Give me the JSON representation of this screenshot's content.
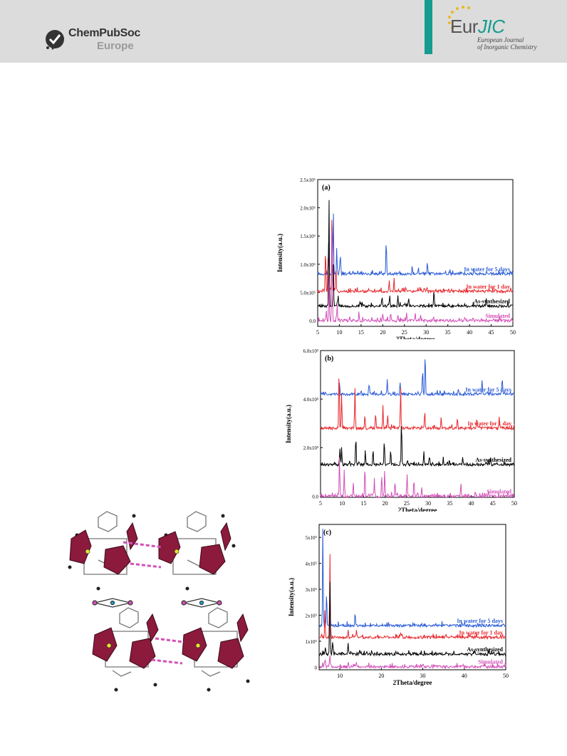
{
  "header": {
    "publisher_name": "ChemPubSoc",
    "publisher_sub": "Europe",
    "journal_brand_prefix": "Eur",
    "journal_brand_suffix": "JIC",
    "journal_full_line1": "European Journal",
    "journal_full_line2": "of Inorganic Chemistry"
  },
  "colors": {
    "header_bg": "#dcdcdc",
    "teal_accent": "#159c8f",
    "series_blue": "#2a5bd7",
    "series_red": "#e8262b",
    "series_black": "#000000",
    "series_magenta": "#d34fb8",
    "polyhedron": "#8b1a3c"
  },
  "chart_data": [
    {
      "type": "line",
      "panel_label": "(a)",
      "xlabel": "2Theta/degree",
      "ylabel": "Intensity(a.u.)",
      "xlim": [
        5,
        50
      ],
      "ylim": [
        -0.1,
        2.5
      ],
      "x_ticks": [
        5,
        10,
        15,
        20,
        25,
        30,
        35,
        40,
        45,
        50
      ],
      "x_tick_labels": [
        "5",
        "10",
        "15",
        "20",
        "25",
        "30",
        "35",
        "40",
        "45",
        "50"
      ],
      "y_ticks": [
        0,
        0.5,
        1.0,
        1.5,
        2.0,
        2.5
      ],
      "y_tick_labels": [
        "0.0",
        "5.0x10⁵",
        "1.0x10⁶",
        "1.5x10⁶",
        "2.0x10⁶",
        "2.5x10⁶"
      ],
      "series": [
        {
          "name": "In water for 5 days",
          "color": "#2a5bd7",
          "baseline": 0.83,
          "peaks": [
            [
              7.5,
              0.55
            ],
            [
              8.6,
              1.1
            ],
            [
              9.4,
              0.42
            ],
            [
              10.2,
              0.35
            ],
            [
              20.8,
              0.6
            ],
            [
              26.8,
              0.15
            ],
            [
              28.2,
              0.12
            ],
            [
              30.3,
              0.18
            ],
            [
              35.5,
              0.1
            ],
            [
              41.0,
              0.12
            ]
          ]
        },
        {
          "name": "In water for 1 day",
          "color": "#e8262b",
          "baseline": 0.52,
          "peaks": [
            [
              6.8,
              0.8
            ],
            [
              7.4,
              0.6
            ],
            [
              8.3,
              1.55
            ],
            [
              9.2,
              0.45
            ],
            [
              21.5,
              0.2
            ],
            [
              22.6,
              0.25
            ],
            [
              25.3,
              0.1
            ],
            [
              30.2,
              0.08
            ]
          ]
        },
        {
          "name": "As-synthesized",
          "color": "#000000",
          "baseline": 0.26,
          "peaks": [
            [
              7.6,
              1.98
            ],
            [
              8.6,
              0.8
            ],
            [
              9.7,
              0.2
            ],
            [
              19.8,
              0.15
            ],
            [
              21.6,
              0.2
            ],
            [
              23.5,
              0.18
            ],
            [
              26.0,
              0.12
            ],
            [
              31.8,
              0.28
            ],
            [
              43.8,
              0.1
            ]
          ]
        },
        {
          "name": "Simulated",
          "color": "#d34fb8",
          "baseline": 0.0,
          "peaks": [
            [
              7.0,
              0.2
            ],
            [
              7.6,
              0.8
            ],
            [
              8.3,
              1.98
            ],
            [
              9.5,
              0.3
            ],
            [
              14.5,
              0.1
            ],
            [
              20.0,
              0.12
            ],
            [
              21.8,
              0.15
            ],
            [
              23.5,
              0.12
            ],
            [
              25.5,
              0.15
            ],
            [
              27.5,
              0.12
            ],
            [
              28.7,
              0.1
            ],
            [
              45.5,
              0.05
            ]
          ]
        }
      ]
    },
    {
      "type": "line",
      "panel_label": "(b)",
      "xlabel": "2Theta/degree",
      "ylabel": "Intensity(a.u.)",
      "xlim": [
        5,
        50
      ],
      "ylim": [
        -0.05,
        6.0
      ],
      "x_ticks": [
        5,
        10,
        15,
        20,
        25,
        30,
        35,
        40,
        45,
        50
      ],
      "x_tick_labels": [
        "5",
        "10",
        "15",
        "20",
        "25",
        "30",
        "35",
        "40",
        "45",
        "50"
      ],
      "y_ticks": [
        0,
        2.0,
        4.0,
        6.0
      ],
      "y_tick_labels": [
        "0.0",
        "2.0x10³",
        "4.0x10³",
        "6.0x10³"
      ],
      "series": [
        {
          "name": "In water for 5 days",
          "color": "#2a5bd7",
          "baseline": 4.2,
          "peaks": [
            [
              9.4,
              0.5
            ],
            [
              16.3,
              0.4
            ],
            [
              20.5,
              0.6
            ],
            [
              23.5,
              0.5
            ],
            [
              28.7,
              1.1
            ],
            [
              29.3,
              1.8
            ],
            [
              37.0,
              0.2
            ],
            [
              42.5,
              0.6
            ],
            [
              47.2,
              0.7
            ]
          ]
        },
        {
          "name": "In water for 1 day",
          "color": "#e8262b",
          "baseline": 2.8,
          "peaks": [
            [
              9.3,
              2.5
            ],
            [
              9.9,
              1.5
            ],
            [
              13.0,
              1.7
            ],
            [
              15.3,
              0.6
            ],
            [
              17.8,
              0.7
            ],
            [
              19.5,
              0.9
            ],
            [
              20.6,
              0.6
            ],
            [
              23.6,
              1.8
            ],
            [
              29.2,
              0.7
            ],
            [
              33.0,
              0.5
            ],
            [
              36.8,
              0.4
            ],
            [
              41.3,
              0.4
            ],
            [
              46.5,
              0.5
            ]
          ]
        },
        {
          "name": "As-synthesized",
          "color": "#000000",
          "baseline": 1.3,
          "peaks": [
            [
              9.5,
              0.7
            ],
            [
              9.9,
              0.8
            ],
            [
              13.2,
              1.2
            ],
            [
              15.4,
              0.6
            ],
            [
              17.2,
              0.6
            ],
            [
              19.8,
              1.0
            ],
            [
              21.3,
              0.6
            ],
            [
              23.8,
              1.8
            ],
            [
              29.0,
              0.5
            ],
            [
              30.3,
              0.4
            ],
            [
              33.5,
              0.3
            ],
            [
              38.0,
              0.3
            ],
            [
              44.5,
              0.3
            ]
          ]
        },
        {
          "name": "Simulated",
          "color": "#d34fb8",
          "baseline": 0.0,
          "peaks": [
            [
              9.4,
              1.7
            ],
            [
              10.5,
              1.1
            ],
            [
              12.6,
              0.6
            ],
            [
              15.3,
              1.2
            ],
            [
              17.5,
              0.7
            ],
            [
              19.2,
              0.9
            ],
            [
              19.9,
              1.1
            ],
            [
              22.3,
              0.6
            ],
            [
              25.1,
              0.9
            ],
            [
              26.7,
              0.7
            ],
            [
              28.5,
              0.4
            ],
            [
              37.6,
              0.5
            ],
            [
              44.0,
              0.2
            ]
          ]
        }
      ]
    },
    {
      "type": "line",
      "panel_label": "(c)",
      "xlabel": "2Theta/degree",
      "ylabel": "Intensity(a.u.)",
      "xlim": [
        5,
        50
      ],
      "ylim": [
        -0.1,
        5.5
      ],
      "x_ticks": [
        10,
        20,
        30,
        40,
        50
      ],
      "x_tick_labels": [
        "10",
        "20",
        "30",
        "40",
        "50"
      ],
      "y_ticks": [
        0,
        1,
        2,
        3,
        4,
        5
      ],
      "y_tick_labels": [
        "0",
        "1x10⁵",
        "2x10⁵",
        "3x10⁵",
        "4x10⁵",
        "5x10⁵"
      ],
      "series": [
        {
          "name": "In water for 5 days",
          "color": "#2a5bd7",
          "baseline": 1.6,
          "peaks": [
            [
              5.9,
              3.9
            ],
            [
              6.8,
              1.4
            ],
            [
              7.6,
              1.3
            ],
            [
              13.7,
              0.4
            ],
            [
              28.0,
              0.1
            ]
          ]
        },
        {
          "name": "In water for 1 day",
          "color": "#e8262b",
          "baseline": 1.15,
          "peaks": [
            [
              6.4,
              1.0
            ],
            [
              7.6,
              3.35
            ],
            [
              12.0,
              0.3
            ],
            [
              14.0,
              0.3
            ],
            [
              25.0,
              0.15
            ],
            [
              43.0,
              0.15
            ]
          ]
        },
        {
          "name": "As-synthesized",
          "color": "#000000",
          "baseline": 0.5,
          "peaks": [
            [
              6.5,
              0.3
            ],
            [
              7.6,
              2.9
            ],
            [
              8.3,
              0.5
            ],
            [
              12.0,
              0.3
            ],
            [
              14.8,
              0.2
            ],
            [
              23.5,
              0.15
            ],
            [
              42.5,
              0.2
            ],
            [
              46.0,
              0.2
            ]
          ]
        },
        {
          "name": "Simulated",
          "color": "#d34fb8",
          "baseline": 0.02,
          "peaks": [
            [
              6.5,
              0.3
            ],
            [
              7.6,
              0.5
            ],
            [
              12.0,
              0.2
            ],
            [
              14.0,
              0.15
            ]
          ]
        }
      ]
    }
  ]
}
